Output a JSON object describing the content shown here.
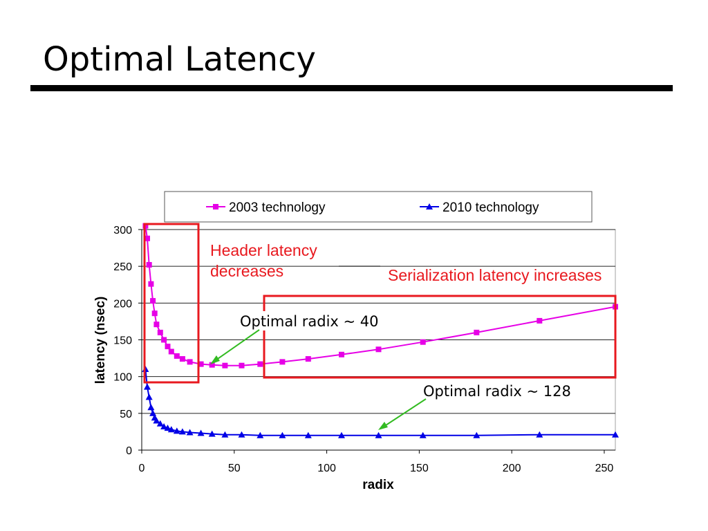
{
  "slide": {
    "title": "Optimal Latency"
  },
  "chart_data": {
    "type": "line",
    "xlabel": "radix",
    "ylabel": "latency (nsec)",
    "xlim": [
      0,
      256
    ],
    "ylim": [
      0,
      300
    ],
    "x_ticks": [
      0,
      50,
      100,
      150,
      200,
      250
    ],
    "y_ticks": [
      0,
      50,
      100,
      150,
      200,
      250,
      300
    ],
    "grid": "horizontal",
    "legend": "top",
    "series": [
      {
        "name": "2003 technology",
        "color": "#e600e6",
        "marker": "square",
        "x": [
          2,
          3,
          4,
          5,
          6,
          7,
          8,
          10,
          12,
          14,
          16,
          19,
          22,
          26,
          32,
          38,
          45,
          54,
          64,
          76,
          90,
          108,
          128,
          152,
          181,
          215,
          256
        ],
        "y": [
          305,
          288,
          252,
          226,
          203,
          186,
          171,
          160,
          150,
          141,
          134,
          128,
          124,
          120,
          117,
          116,
          115,
          115,
          117,
          120,
          124,
          130,
          137,
          147,
          160,
          176,
          195
        ]
      },
      {
        "name": "2010 technology",
        "color": "#0000e6",
        "marker": "triangle",
        "x": [
          2,
          3,
          4,
          5,
          6,
          7,
          8,
          10,
          12,
          14,
          16,
          19,
          22,
          26,
          32,
          38,
          45,
          54,
          64,
          76,
          90,
          108,
          128,
          152,
          181,
          215,
          256
        ],
        "y": [
          110,
          86,
          72,
          58,
          50,
          44,
          40,
          36,
          32,
          30,
          28,
          26,
          25,
          24,
          23,
          22,
          21,
          21,
          20,
          20,
          20,
          20,
          20,
          20,
          20,
          21,
          21
        ]
      }
    ],
    "annotations": {
      "header_1": "Header latency",
      "header_2": "decreases",
      "serialization": "Serialization latency increases",
      "optimal_2003": "Optimal radix ~ 40",
      "optimal_2010": "Optimal radix ~ 128"
    },
    "colors": {
      "annotation_red": "#e8191f",
      "arrow_green": "#33bb22"
    }
  }
}
